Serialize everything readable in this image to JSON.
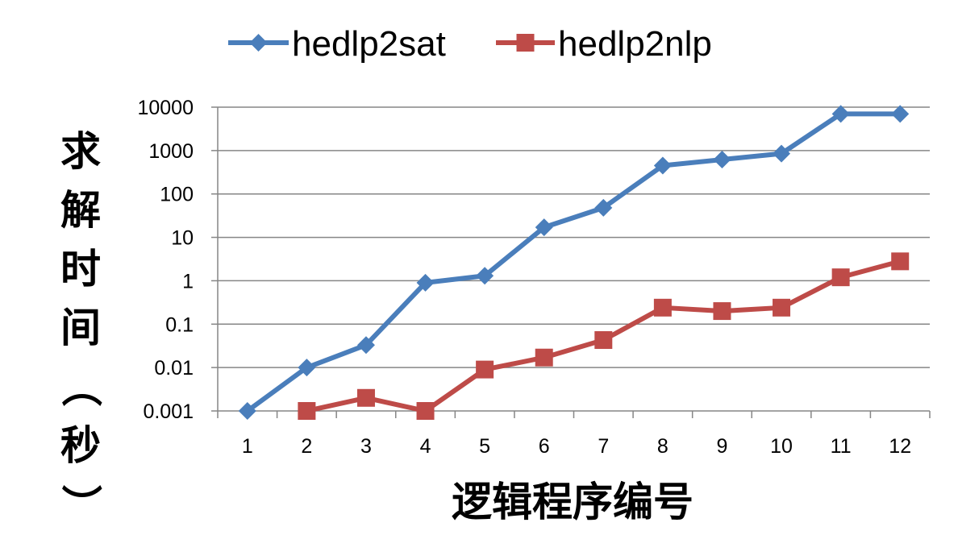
{
  "chart_data": {
    "type": "line",
    "title": "",
    "xlabel": "逻辑程序编号",
    "ylabel": "求解时间（秒）",
    "y_scale": "log",
    "ylim": [
      0.001,
      10000
    ],
    "y_ticks": [
      "0.001",
      "0.01",
      "0.1",
      "1",
      "10",
      "100",
      "1000",
      "10000"
    ],
    "categories": [
      "1",
      "2",
      "3",
      "4",
      "5",
      "6",
      "7",
      "8",
      "9",
      "10",
      "11",
      "12"
    ],
    "grid": "horizontal",
    "legend_position": "top",
    "series": [
      {
        "name": "hedlp2sat",
        "color": "#4a7ebb",
        "marker": "diamond",
        "values": [
          0.001,
          0.01,
          0.033,
          0.9,
          1.3,
          17,
          48,
          450,
          620,
          850,
          7000,
          7000
        ]
      },
      {
        "name": "hedlp2nlp",
        "color": "#be4b48",
        "marker": "square",
        "values": [
          null,
          0.001,
          0.002,
          0.001,
          0.009,
          0.017,
          0.043,
          0.24,
          0.2,
          0.24,
          1.2,
          2.8
        ]
      }
    ]
  }
}
